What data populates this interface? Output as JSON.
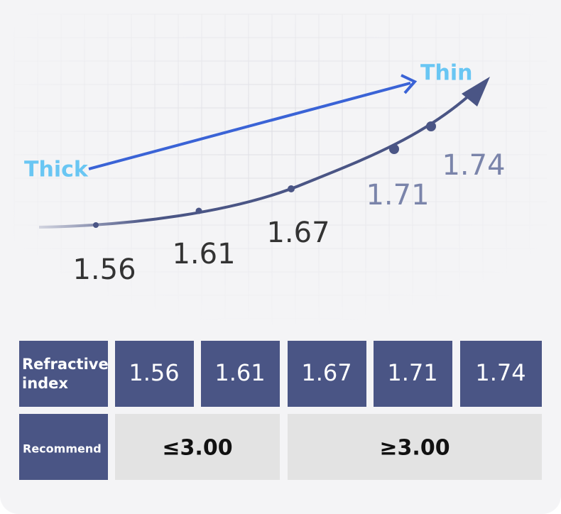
{
  "diagram": {
    "thick_label": "Thick",
    "thin_label": "Thin",
    "points": [
      "1.56",
      "1.61",
      "1.67",
      "1.71",
      "1.74"
    ]
  },
  "table": {
    "rows": [
      [
        "Refractive index",
        "1.56",
        "1.61",
        "1.67",
        "1.71",
        "1.74"
      ],
      [
        "Recommend",
        "≤3.00",
        "≥3.00"
      ]
    ]
  }
}
